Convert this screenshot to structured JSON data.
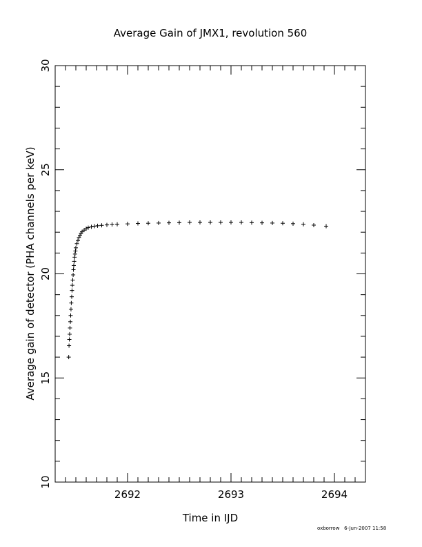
{
  "chart_data": {
    "type": "scatter",
    "title": "Average Gain of JMX1, revolution 560",
    "xlabel": "Time in IJD",
    "ylabel": "Average gain of detector (PHA channels per keV)",
    "xlim": [
      2691.3,
      2694.3
    ],
    "ylim": [
      10,
      30
    ],
    "xticks": [
      2692,
      2693,
      2694
    ],
    "xtick_labels": [
      "2692",
      "2693",
      "2694"
    ],
    "yticks": [
      10,
      15,
      20,
      25,
      30
    ],
    "ytick_labels": [
      "10",
      "15",
      "20",
      "25",
      "30"
    ],
    "grid": false,
    "marker": "+",
    "color": "#000000",
    "series": [
      {
        "x": [
          2691.431,
          2691.434,
          2691.437,
          2691.44,
          2691.443,
          2691.447,
          2691.45,
          2691.453,
          2691.456,
          2691.46,
          2691.463,
          2691.466,
          2691.47,
          2691.474,
          2691.477,
          2691.48,
          2691.484,
          2691.488,
          2691.492,
          2691.496,
          2691.5,
          2691.51,
          2691.52,
          2691.53,
          2691.54,
          2691.55,
          2691.56,
          2691.58,
          2691.6,
          2691.62,
          2691.65,
          2691.68,
          2691.71,
          2691.75,
          2691.8,
          2691.85,
          2691.9,
          2692.0,
          2692.1,
          2692.2,
          2692.3,
          2692.4,
          2692.5,
          2692.6,
          2692.7,
          2692.8,
          2692.9,
          2693.0,
          2693.1,
          2693.2,
          2693.3,
          2693.4,
          2693.5,
          2693.6,
          2693.7,
          2693.8,
          2693.92
        ],
        "y": [
          16.0,
          16.55,
          16.85,
          17.1,
          17.4,
          17.7,
          18.0,
          18.3,
          18.6,
          18.9,
          19.2,
          19.45,
          19.7,
          19.95,
          20.2,
          20.4,
          20.6,
          20.8,
          20.95,
          21.1,
          21.25,
          21.45,
          21.6,
          21.75,
          21.85,
          21.95,
          22.02,
          22.1,
          22.17,
          22.22,
          22.26,
          22.29,
          22.31,
          22.33,
          22.35,
          22.37,
          22.38,
          22.4,
          22.42,
          22.43,
          22.44,
          22.45,
          22.46,
          22.47,
          22.47,
          22.47,
          22.47,
          22.47,
          22.47,
          22.46,
          22.45,
          22.44,
          22.43,
          22.41,
          22.38,
          22.34,
          22.29
        ]
      }
    ]
  },
  "footer": {
    "author": "oxborrow",
    "timestamp": "6-Jun-2007 11:58"
  }
}
